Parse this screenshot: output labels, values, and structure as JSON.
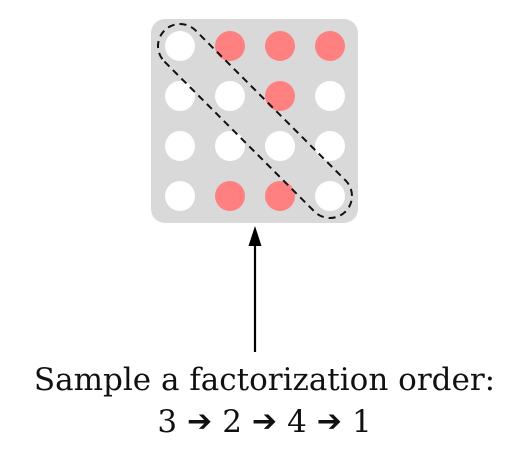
{
  "diagram": {
    "grid": {
      "rows": 4,
      "cols": 4,
      "background_color": "#d9d9d9",
      "colors": {
        "off": "#ffffff",
        "on": "#ff8080"
      },
      "cells": [
        [
          "off",
          "on",
          "on",
          "on"
        ],
        [
          "off",
          "off",
          "on",
          "off"
        ],
        [
          "off",
          "off",
          "off",
          "off"
        ],
        [
          "off",
          "on",
          "on",
          "off"
        ]
      ],
      "highlight": {
        "shape": "dashed-diagonal-outline",
        "cells": [
          [
            0,
            0
          ],
          [
            1,
            1
          ],
          [
            2,
            2
          ],
          [
            3,
            3
          ]
        ]
      }
    },
    "arrow": {
      "direction": "up",
      "color": "#000000"
    },
    "caption": {
      "line1": "Sample a factorization order:",
      "order": [
        "3",
        "2",
        "4",
        "1"
      ],
      "separator": "➔"
    }
  }
}
